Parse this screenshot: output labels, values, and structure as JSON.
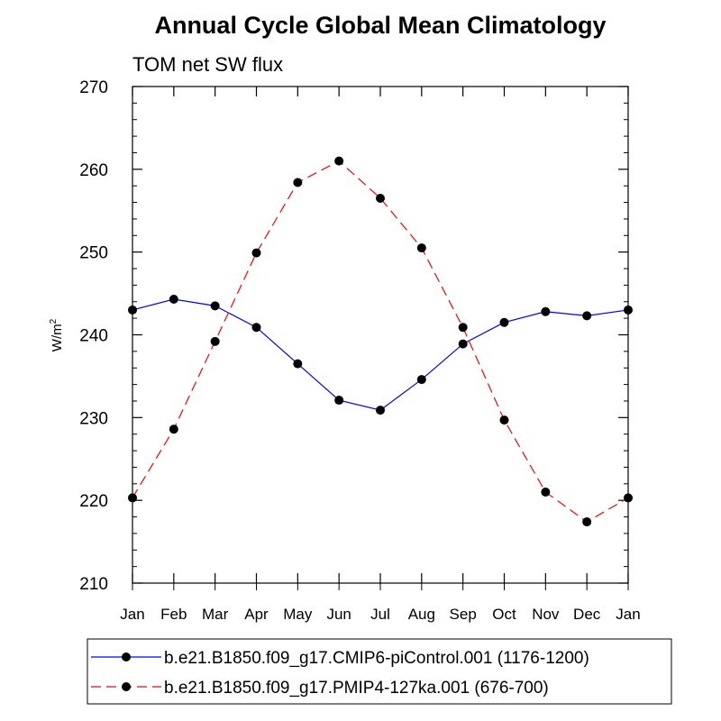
{
  "chart_data": {
    "type": "line",
    "title": "Annual Cycle Global Mean Climatology",
    "subtitle": "TOM net SW flux",
    "ylabel": "W/m",
    "ylabel_sup": "2",
    "xlabel": "",
    "categories": [
      "Jan",
      "Feb",
      "Mar",
      "Apr",
      "May",
      "Jun",
      "Jul",
      "Aug",
      "Sep",
      "Oct",
      "Nov",
      "Dec",
      "Jan"
    ],
    "ylim": [
      210,
      270
    ],
    "yticks": [
      210,
      220,
      230,
      240,
      250,
      260,
      270
    ],
    "ytick_labels": [
      "210",
      "220",
      "230",
      "240",
      "250",
      "260",
      "270"
    ],
    "grid": false,
    "legend_position": "bottom",
    "series": [
      {
        "name": "b.e21.B1850.f09_g17.CMIP6-piControl.001 (1176-1200)",
        "color": "#0000ff",
        "line_style": "solid",
        "marker": "filled-circle",
        "values": [
          243.0,
          244.3,
          243.5,
          240.9,
          236.5,
          232.1,
          230.9,
          234.6,
          238.9,
          241.5,
          242.8,
          242.3,
          243.0
        ]
      },
      {
        "name": "b.e21.B1850.f09_g17.PMIP4-127ka.001 (676-700)",
        "color": "#ff0000",
        "line_style": "dashed",
        "marker": "filled-circle",
        "values": [
          220.3,
          228.6,
          239.2,
          249.9,
          258.4,
          261.0,
          256.5,
          250.5,
          240.9,
          229.7,
          221.0,
          217.4,
          220.3
        ]
      }
    ]
  }
}
